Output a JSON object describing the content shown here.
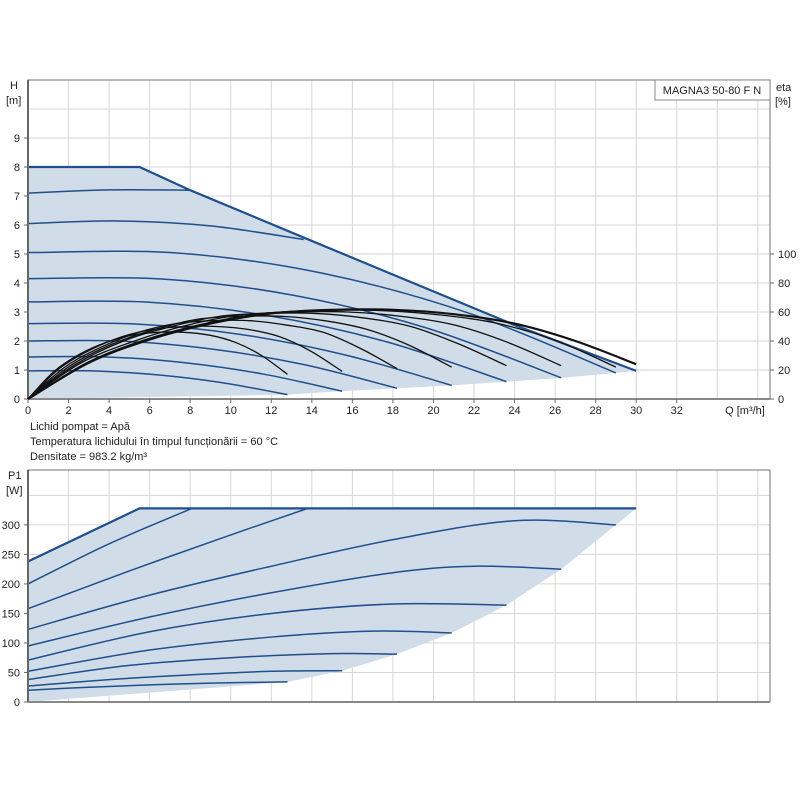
{
  "colors": {
    "curve": "#1f4f8c",
    "efficiency": "#111111",
    "area": "#d0dce8",
    "grid": "#d6d6d6",
    "axis": "#8a8a8a"
  },
  "info": {
    "liquid": "Lichid pompat = Apă",
    "temperature": "Temperatura lichidului în timpul funcționării = 60 °C",
    "density": "Densitate = 983.2 kg/m³"
  },
  "chart_data": [
    {
      "type": "line",
      "title": "MAGNA3 50-80 F N",
      "ylabel": "H",
      "ylabel_unit": "[m]",
      "y2label": "eta",
      "y2label_unit": "[%]",
      "xlabel": "Q [m³/h]",
      "xlim": [
        0,
        36.6
      ],
      "ylim": [
        0,
        11
      ],
      "y2lim": [
        0,
        220
      ],
      "grid": true,
      "x_ticks": [
        0,
        2,
        4,
        6,
        8,
        10,
        12,
        14,
        16,
        18,
        20,
        22,
        24,
        26,
        28,
        30,
        32
      ],
      "y_ticks": [
        0,
        1,
        2,
        3,
        4,
        5,
        6,
        7,
        8,
        9
      ],
      "y2_ticks": [
        0,
        20,
        40,
        60,
        80,
        100
      ],
      "max_curve": [
        [
          0,
          8
        ],
        [
          5.5,
          8
        ],
        [
          8,
          7.2
        ],
        [
          14,
          5.45
        ],
        [
          24,
          2.55
        ],
        [
          30,
          0.97
        ]
      ],
      "area_lower_boundary": [
        [
          30,
          0.97
        ],
        [
          29,
          0.9
        ],
        [
          26.3,
          0.73
        ],
        [
          23.6,
          0.6
        ],
        [
          20.9,
          0.47
        ],
        [
          18.2,
          0.37
        ],
        [
          15.5,
          0.27
        ],
        [
          12.8,
          0.15
        ],
        [
          0,
          0
        ]
      ],
      "head_curves": [
        [
          [
            0,
            0.97
          ],
          [
            3.2,
            0.97
          ],
          [
            6.4,
            0.83
          ],
          [
            9.6,
            0.56
          ],
          [
            12.8,
            0.15
          ]
        ],
        [
          [
            0,
            1.45
          ],
          [
            3.9,
            1.45
          ],
          [
            7.75,
            1.25
          ],
          [
            11.6,
            0.86
          ],
          [
            15.5,
            0.27
          ]
        ],
        [
          [
            0,
            2.0
          ],
          [
            4.55,
            2.0
          ],
          [
            9.1,
            1.72
          ],
          [
            13.65,
            1.18
          ],
          [
            18.2,
            0.37
          ]
        ],
        [
          [
            0,
            2.6
          ],
          [
            5.2,
            2.59
          ],
          [
            10.45,
            2.23
          ],
          [
            15.7,
            1.51
          ],
          [
            20.9,
            0.47
          ]
        ],
        [
          [
            0,
            3.35
          ],
          [
            5.9,
            3.34
          ],
          [
            11.8,
            2.88
          ],
          [
            17.7,
            1.97
          ],
          [
            23.6,
            0.6
          ]
        ],
        [
          [
            0,
            4.15
          ],
          [
            6.6,
            4.14
          ],
          [
            13.15,
            3.57
          ],
          [
            19.7,
            2.44
          ],
          [
            26.3,
            0.73
          ]
        ],
        [
          [
            0,
            5.05
          ],
          [
            7.25,
            5.04
          ],
          [
            14.5,
            4.34
          ],
          [
            21.75,
            2.96
          ],
          [
            29,
            0.9
          ]
        ],
        [
          [
            0,
            6.05
          ],
          [
            4.5,
            6.14
          ],
          [
            9,
            5.97
          ],
          [
            13.6,
            5.5
          ]
        ],
        [
          [
            0,
            7.1
          ],
          [
            4,
            7.21
          ],
          [
            8,
            7.2
          ]
        ]
      ],
      "efficiency_curves": [
        {
          "q_end": 12.8,
          "eta": [
            0,
            19,
            31,
            39,
            44,
            46,
            46,
            44,
            39,
            30,
            17
          ]
        },
        {
          "q_end": 15.5,
          "eta": [
            0,
            21,
            34,
            43,
            48,
            50,
            50,
            48,
            43,
            33,
            19
          ]
        },
        {
          "q_end": 18.2,
          "eta": [
            0,
            22,
            36,
            46,
            52,
            54,
            54,
            51,
            46,
            35,
            21
          ]
        },
        {
          "q_end": 20.9,
          "eta": [
            0,
            23,
            38,
            48,
            55,
            57,
            57,
            54,
            48,
            37,
            22
          ]
        },
        {
          "q_end": 23.6,
          "eta": [
            0,
            24,
            40,
            50,
            57,
            59,
            59,
            56,
            50,
            38,
            23
          ]
        },
        {
          "q_end": 26.3,
          "eta": [
            0,
            25,
            40,
            51,
            58,
            60,
            60,
            57,
            51,
            39,
            23
          ]
        },
        {
          "q_end": 29.0,
          "eta": [
            0,
            25,
            41,
            52,
            59,
            61,
            61,
            58,
            52,
            40,
            22
          ]
        },
        {
          "q_end": 30.0,
          "eta": [
            0,
            25,
            41,
            52,
            59,
            61.5,
            61.5,
            58.5,
            52,
            40,
            24
          ]
        }
      ]
    },
    {
      "type": "line",
      "ylabel": "P1",
      "ylabel_unit": "[W]",
      "xlim": [
        0,
        36.6
      ],
      "ylim": [
        0,
        393
      ],
      "grid": true,
      "y_ticks": [
        0,
        50,
        100,
        150,
        200,
        250,
        300
      ],
      "max_curve": [
        [
          0,
          238
        ],
        [
          5.5,
          328
        ],
        [
          30,
          328
        ]
      ],
      "area_lower_boundary": [
        [
          30,
          328
        ],
        [
          29,
          300
        ],
        [
          26.3,
          225
        ],
        [
          23.6,
          164
        ],
        [
          20.9,
          117
        ],
        [
          18.2,
          81
        ],
        [
          15.5,
          53
        ],
        [
          12.8,
          34
        ],
        [
          0,
          0
        ]
      ],
      "power_curves": [
        [
          [
            0,
            20
          ],
          [
            3,
            25
          ],
          [
            6,
            29
          ],
          [
            9,
            32
          ],
          [
            12.8,
            34
          ]
        ],
        [
          [
            0,
            27
          ],
          [
            4,
            38
          ],
          [
            8,
            46
          ],
          [
            12,
            52
          ],
          [
            15.5,
            53
          ]
        ],
        [
          [
            0,
            38
          ],
          [
            5,
            62
          ],
          [
            10,
            75
          ],
          [
            15,
            82
          ],
          [
            18.2,
            81
          ]
        ],
        [
          [
            0,
            52
          ],
          [
            6,
            88
          ],
          [
            12,
            110
          ],
          [
            17,
            120
          ],
          [
            20.9,
            117
          ]
        ],
        [
          [
            0,
            71
          ],
          [
            6,
            119
          ],
          [
            12,
            150
          ],
          [
            18,
            166
          ],
          [
            23.6,
            164
          ]
        ],
        [
          [
            0,
            95
          ],
          [
            6,
            144
          ],
          [
            12,
            185
          ],
          [
            18,
            219
          ],
          [
            22,
            230
          ],
          [
            26.3,
            225
          ]
        ],
        [
          [
            0,
            123
          ],
          [
            6,
            181
          ],
          [
            12,
            230
          ],
          [
            18,
            275
          ],
          [
            24,
            307
          ],
          [
            29,
            300
          ]
        ],
        [
          [
            0,
            158
          ],
          [
            5,
            222
          ],
          [
            10,
            283
          ],
          [
            13.8,
            328
          ]
        ],
        [
          [
            0,
            200
          ],
          [
            4,
            268
          ],
          [
            8.1,
            328
          ]
        ]
      ]
    }
  ]
}
